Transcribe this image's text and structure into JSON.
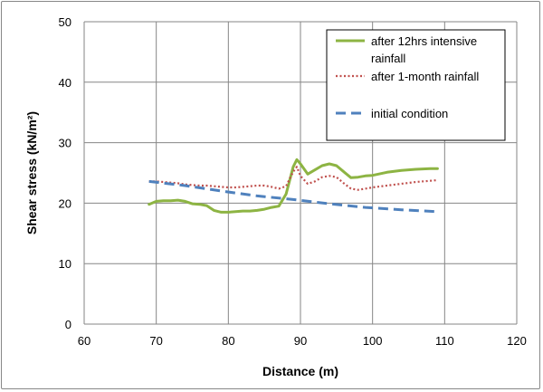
{
  "chart_data": {
    "type": "line",
    "title": "",
    "xlabel": "Distance (m)",
    "ylabel": "Shear stress (kN/m²)",
    "xlim": [
      60,
      120
    ],
    "ylim": [
      0,
      50
    ],
    "x_ticks": [
      "60",
      "70",
      "80",
      "90",
      "100",
      "110",
      "120"
    ],
    "y_ticks": [
      "0",
      "10",
      "20",
      "30",
      "40",
      "50"
    ],
    "grid": true,
    "legend_position": "top-right",
    "series": [
      {
        "name": "after 12hrs intensive rainfall",
        "color": "#8DB443",
        "style": "solid",
        "points": [
          [
            69,
            19.8
          ],
          [
            70,
            20.3
          ],
          [
            71,
            20.4
          ],
          [
            72,
            20.4
          ],
          [
            73,
            20.5
          ],
          [
            74,
            20.3
          ],
          [
            75,
            19.9
          ],
          [
            76,
            19.8
          ],
          [
            77,
            19.6
          ],
          [
            78,
            18.8
          ],
          [
            79,
            18.5
          ],
          [
            80,
            18.5
          ],
          [
            81,
            18.6
          ],
          [
            82,
            18.7
          ],
          [
            83,
            18.7
          ],
          [
            84,
            18.8
          ],
          [
            85,
            19.0
          ],
          [
            86,
            19.3
          ],
          [
            87,
            19.5
          ],
          [
            88,
            21.5
          ],
          [
            89,
            26.0
          ],
          [
            89.5,
            27.2
          ],
          [
            90,
            26.5
          ],
          [
            91,
            24.8
          ],
          [
            92,
            25.5
          ],
          [
            93,
            26.2
          ],
          [
            94,
            26.5
          ],
          [
            95,
            26.2
          ],
          [
            96,
            25.2
          ],
          [
            97,
            24.2
          ],
          [
            98,
            24.3
          ],
          [
            99,
            24.5
          ],
          [
            100,
            24.6
          ],
          [
            102,
            25.1
          ],
          [
            104,
            25.4
          ],
          [
            106,
            25.6
          ],
          [
            108,
            25.7
          ],
          [
            109,
            25.7
          ]
        ]
      },
      {
        "name": "after 1-month rainfall",
        "color": "#C0504D",
        "style": "dotted",
        "points": [
          [
            69,
            23.6
          ],
          [
            70,
            23.6
          ],
          [
            71,
            23.5
          ],
          [
            72,
            23.4
          ],
          [
            73,
            23.3
          ],
          [
            74,
            23.1
          ],
          [
            75,
            23.0
          ],
          [
            76,
            22.9
          ],
          [
            77,
            22.9
          ],
          [
            78,
            22.8
          ],
          [
            79,
            22.7
          ],
          [
            80,
            22.6
          ],
          [
            81,
            22.6
          ],
          [
            82,
            22.7
          ],
          [
            83,
            22.8
          ],
          [
            84,
            22.9
          ],
          [
            85,
            22.9
          ],
          [
            86,
            22.7
          ],
          [
            87,
            22.4
          ],
          [
            88,
            22.8
          ],
          [
            89,
            25.2
          ],
          [
            89.5,
            26.0
          ],
          [
            90,
            24.5
          ],
          [
            91,
            23.2
          ],
          [
            92,
            23.6
          ],
          [
            93,
            24.3
          ],
          [
            94,
            24.5
          ],
          [
            95,
            24.3
          ],
          [
            96,
            23.3
          ],
          [
            97,
            22.4
          ],
          [
            98,
            22.2
          ],
          [
            99,
            22.4
          ],
          [
            100,
            22.6
          ],
          [
            102,
            22.9
          ],
          [
            104,
            23.2
          ],
          [
            106,
            23.5
          ],
          [
            108,
            23.7
          ],
          [
            109,
            23.8
          ]
        ]
      },
      {
        "name": "initial condition",
        "color": "#4F81BD",
        "style": "dashed",
        "points": [
          [
            69,
            23.6
          ],
          [
            74,
            22.9
          ],
          [
            79,
            22.0
          ],
          [
            84,
            21.2
          ],
          [
            89,
            20.6
          ],
          [
            94,
            19.9
          ],
          [
            99,
            19.3
          ],
          [
            104,
            18.9
          ],
          [
            109,
            18.6
          ]
        ]
      }
    ],
    "legend": {
      "entries": [
        {
          "lines": [
            "after 12hrs intensive",
            "rainfall"
          ]
        },
        {
          "lines": [
            "after 1-month rainfall"
          ]
        },
        {
          "lines": [
            "initial condition"
          ]
        }
      ]
    }
  }
}
